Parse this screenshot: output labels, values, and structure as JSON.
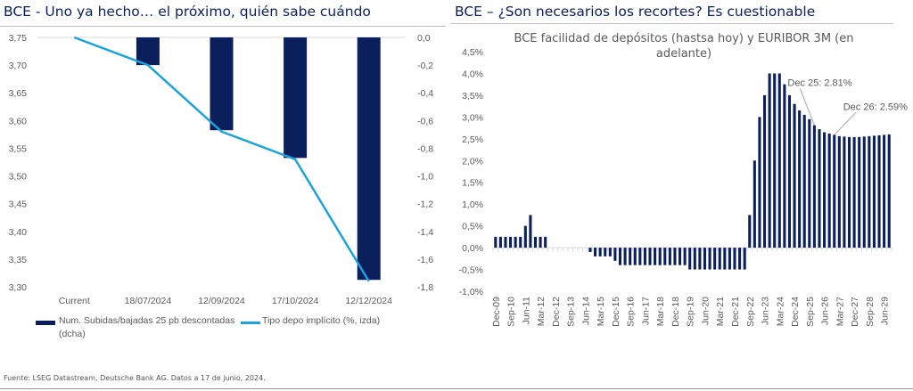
{
  "left_panel": {
    "title": "BCE -  Uno ya hecho… el próximo, quién sabe cuándo"
  },
  "right_panel": {
    "title": "BCE – ¿Son necesarios los recortes? Es cuestionable"
  },
  "source": "Fuente: LSEG Datastream, Deutsche Bank AG. Datos a 17 de junio, 2024.",
  "colors": {
    "navy": "#0b1f5c",
    "cyan": "#1aa3dc",
    "grid": "#d9d9d9",
    "title": "#0a1f5c"
  },
  "chart_data": [
    {
      "type": "bar+line",
      "title": "BCE -  Uno ya hecho… el próximo, quién sabe cuándo",
      "categories": [
        "Current",
        "18/07/2024",
        "12/09/2024",
        "17/10/2024",
        "12/12/2024"
      ],
      "left_axis": {
        "ylim": [
          3.3,
          3.75
        ],
        "ticks": [
          "3,75",
          "3,70",
          "3,65",
          "3,60",
          "3,55",
          "3,50",
          "3,45",
          "3,40",
          "3,35",
          "3,30"
        ]
      },
      "right_axis": {
        "ylim": [
          -1.8,
          0.0
        ],
        "ticks": [
          "0,0",
          "-0,2",
          "-0,4",
          "-0,6",
          "-0,8",
          "-1,0",
          "-1,2",
          "-1,4",
          "-1,6",
          "-1,8"
        ]
      },
      "series": [
        {
          "name": "Num. Subidas/bajadas 25 pb descontadas (dcha)",
          "type": "bar",
          "axis": "right",
          "values": [
            0,
            -0.2,
            -0.67,
            -0.87,
            -1.75
          ]
        },
        {
          "name": "Tipo depo implícito (%, izda)",
          "type": "line",
          "axis": "left",
          "values": [
            3.75,
            3.7,
            3.58,
            3.53,
            3.31
          ]
        }
      ],
      "legend": [
        {
          "label_line1": "Num. Subidas/bajadas 25 pb descontadas",
          "label_line2": "(dcha)"
        },
        {
          "label_line1": "Tipo depo implícito (%, izda)"
        }
      ],
      "legend_position": "bottom",
      "grid": false
    },
    {
      "type": "bar",
      "title": "BCE facilidad de depósitos (hastsa hoy) y EURIBOR 3M (en adelante)",
      "title_line1": "BCE facilidad de depósitos (hastsa hoy) y EURIBOR 3M (en",
      "title_line2": "adelante)",
      "ylim": [
        -1.0,
        4.5
      ],
      "yticks": [
        "4,5%",
        "4,0%",
        "3,5%",
        "3,0%",
        "2,5%",
        "2,0%",
        "1,5%",
        "1,0%",
        "0,5%",
        "0,0%",
        "-0,5%",
        "-1,0%"
      ],
      "xtick_labels": [
        "Dec-09",
        "Sep-10",
        "Jun-11",
        "Mar-12",
        "Dec-12",
        "Sep-13",
        "Jun-14",
        "Mar-15",
        "Dec-15",
        "Sep-16",
        "Jun-17",
        "Mar-18",
        "Dec-18",
        "Sep-19",
        "Jun-20",
        "Mar-21",
        "Dec-21",
        "Sep-22",
        "Jun-23",
        "Mar-24",
        "Dec-24",
        "Sep-25",
        "Jun-26",
        "Mar-27",
        "Dec-27",
        "Sep-28",
        "Jun-29"
      ],
      "frequency": "quarterly",
      "values": [
        0.25,
        0.25,
        0.25,
        0.25,
        0.25,
        0.25,
        0.5,
        0.75,
        0.25,
        0.25,
        0.25,
        0,
        0,
        0,
        0,
        0,
        0,
        0,
        0,
        -0.1,
        -0.2,
        -0.2,
        -0.2,
        -0.2,
        -0.3,
        -0.4,
        -0.4,
        -0.4,
        -0.4,
        -0.4,
        -0.4,
        -0.4,
        -0.4,
        -0.4,
        -0.4,
        -0.4,
        -0.4,
        -0.4,
        -0.4,
        -0.5,
        -0.5,
        -0.5,
        -0.5,
        -0.5,
        -0.5,
        -0.5,
        -0.5,
        -0.5,
        -0.5,
        -0.5,
        -0.5,
        0.75,
        2.0,
        3.0,
        3.5,
        4.0,
        4.0,
        4.0,
        3.75,
        3.5,
        3.3,
        3.15,
        3.05,
        2.95,
        2.81,
        2.72,
        2.65,
        2.62,
        2.59,
        2.56,
        2.55,
        2.54,
        2.54,
        2.54,
        2.55,
        2.56,
        2.57,
        2.58,
        2.59,
        2.6
      ],
      "annotations": [
        {
          "text": "Dec 25: 2.81%",
          "x": "Dec-25",
          "y": 2.81
        },
        {
          "text": "Dec 26: 2.59%",
          "x": "Dec-26",
          "y": 2.59
        }
      ],
      "grid": false
    }
  ]
}
